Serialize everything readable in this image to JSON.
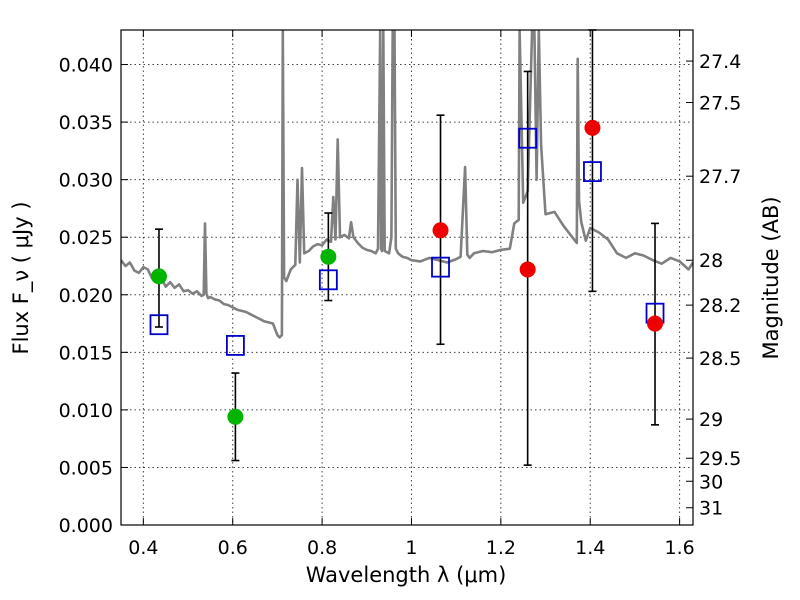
{
  "chart_data": {
    "type": "scatter",
    "xlabel": "Wavelength  λ (μm)",
    "ylabel": "Flux  F_ν  ( μJy )",
    "ylabel_right": "Magnitude (AB)",
    "xlim": [
      0.35,
      1.63
    ],
    "ylim": [
      0.0,
      0.043
    ],
    "grid": true,
    "x_ticks": [
      0.4,
      0.6,
      0.8,
      1.0,
      1.2,
      1.4,
      1.6
    ],
    "x_tick_labels": [
      "0.4",
      "0.6",
      "0.8",
      "1",
      "1.2",
      "1.4",
      "1.6"
    ],
    "y_ticks": [
      0.0,
      0.005,
      0.01,
      0.015,
      0.02,
      0.025,
      0.03,
      0.035,
      0.04
    ],
    "y_tick_labels": [
      "0.000",
      "0.005",
      "0.010",
      "0.015",
      "0.020",
      "0.025",
      "0.030",
      "0.035",
      "0.040"
    ],
    "right_axis_ticks": [
      {
        "label": "27.4",
        "flux": 0.0403
      },
      {
        "label": "27.5",
        "flux": 0.0367
      },
      {
        "label": "27.7",
        "flux": 0.0303
      },
      {
        "label": "28",
        "flux": 0.023
      },
      {
        "label": "28.2",
        "flux": 0.0191
      },
      {
        "label": "28.5",
        "flux": 0.0145
      },
      {
        "label": "29",
        "flux": 0.0092
      },
      {
        "label": "29.5",
        "flux": 0.0058
      },
      {
        "label": "30",
        "flux": 0.0038
      },
      {
        "label": "31",
        "flux": 0.0015
      }
    ],
    "series": [
      {
        "name": "model spectrum",
        "kind": "line",
        "color": "#808080",
        "x": [
          0.35,
          0.36,
          0.37,
          0.38,
          0.39,
          0.4,
          0.41,
          0.42,
          0.43,
          0.44,
          0.45,
          0.46,
          0.47,
          0.48,
          0.49,
          0.5,
          0.51,
          0.52,
          0.53,
          0.535,
          0.538,
          0.541,
          0.545,
          0.55,
          0.56,
          0.57,
          0.58,
          0.59,
          0.6,
          0.61,
          0.62,
          0.63,
          0.64,
          0.65,
          0.66,
          0.67,
          0.68,
          0.69,
          0.7,
          0.705,
          0.71,
          0.712,
          0.715,
          0.72,
          0.73,
          0.74,
          0.745,
          0.75,
          0.755,
          0.76,
          0.77,
          0.78,
          0.79,
          0.8,
          0.81,
          0.82,
          0.825,
          0.83,
          0.835,
          0.84,
          0.85,
          0.86,
          0.865,
          0.87,
          0.88,
          0.89,
          0.9,
          0.91,
          0.92,
          0.925,
          0.93,
          0.932,
          0.934,
          0.937,
          0.94,
          0.95,
          0.955,
          0.958,
          0.962,
          0.965,
          0.97,
          0.98,
          0.99,
          1.0,
          1.02,
          1.04,
          1.06,
          1.08,
          1.1,
          1.11,
          1.12,
          1.125,
          1.13,
          1.14,
          1.16,
          1.18,
          1.2,
          1.22,
          1.23,
          1.24,
          1.242,
          1.25,
          1.26,
          1.27,
          1.275,
          1.28,
          1.285,
          1.29,
          1.3,
          1.32,
          1.34,
          1.35,
          1.36,
          1.37,
          1.372,
          1.375,
          1.38,
          1.39,
          1.4,
          1.42,
          1.44,
          1.46,
          1.48,
          1.5,
          1.52,
          1.54,
          1.56,
          1.58,
          1.6,
          1.62,
          1.63
        ],
        "y": [
          0.023,
          0.0225,
          0.0228,
          0.0221,
          0.0219,
          0.0224,
          0.0222,
          0.0214,
          0.0218,
          0.0215,
          0.0207,
          0.0211,
          0.0206,
          0.0209,
          0.0203,
          0.0204,
          0.0201,
          0.0203,
          0.0199,
          0.02,
          0.0262,
          0.0201,
          0.0197,
          0.0198,
          0.0196,
          0.0195,
          0.0192,
          0.0191,
          0.0189,
          0.0187,
          0.0186,
          0.0185,
          0.0183,
          0.0181,
          0.0179,
          0.0177,
          0.0176,
          0.0175,
          0.0165,
          0.0163,
          0.0165,
          0.043,
          0.0215,
          0.0212,
          0.0222,
          0.0226,
          0.03,
          0.0228,
          0.031,
          0.0236,
          0.0238,
          0.0242,
          0.0244,
          0.0243,
          0.0248,
          0.0246,
          0.0285,
          0.0248,
          0.0335,
          0.025,
          0.0252,
          0.0249,
          0.0263,
          0.025,
          0.0245,
          0.0241,
          0.0239,
          0.0238,
          0.0236,
          0.024,
          0.043,
          0.024,
          0.0238,
          0.043,
          0.0238,
          0.0236,
          0.025,
          0.043,
          0.043,
          0.024,
          0.0236,
          0.0233,
          0.0232,
          0.023,
          0.0229,
          0.0232,
          0.023,
          0.0228,
          0.0231,
          0.0233,
          0.0311,
          0.0235,
          0.0232,
          0.0236,
          0.0238,
          0.0237,
          0.0239,
          0.024,
          0.0262,
          0.0265,
          0.043,
          0.028,
          0.029,
          0.043,
          0.043,
          0.03,
          0.043,
          0.033,
          0.027,
          0.0272,
          0.026,
          0.0255,
          0.025,
          0.0245,
          0.0405,
          0.0282,
          0.0263,
          0.0247,
          0.0258,
          0.0254,
          0.0248,
          0.0236,
          0.0232,
          0.0236,
          0.0234,
          0.023,
          0.0227,
          0.0232,
          0.0229,
          0.0222,
          0.0228
        ]
      },
      {
        "name": "green observed",
        "kind": "points",
        "color": "#00b400",
        "points": [
          {
            "x": 0.435,
            "y": 0.0216,
            "lo": 0.0172,
            "hi": 0.0257
          },
          {
            "x": 0.606,
            "y": 0.0094,
            "lo": 0.0056,
            "hi": 0.0132
          },
          {
            "x": 0.814,
            "y": 0.0233,
            "lo": 0.0195,
            "hi": 0.0271
          }
        ]
      },
      {
        "name": "red observed",
        "kind": "points",
        "color": "#ee0000",
        "points": [
          {
            "x": 1.065,
            "y": 0.0256,
            "lo": 0.0157,
            "hi": 0.0356
          },
          {
            "x": 1.26,
            "y": 0.0222,
            "lo": 0.0052,
            "hi": 0.0394
          },
          {
            "x": 1.405,
            "y": 0.0345,
            "lo": 0.0203,
            "hi": 0.043
          },
          {
            "x": 1.545,
            "y": 0.0175,
            "lo": 0.0087,
            "hi": 0.0262
          }
        ]
      },
      {
        "name": "model photometry",
        "kind": "squares",
        "color": "#0000cc",
        "points": [
          {
            "x": 0.435,
            "y": 0.0174
          },
          {
            "x": 0.606,
            "y": 0.0156
          },
          {
            "x": 0.814,
            "y": 0.0213
          },
          {
            "x": 1.065,
            "y": 0.0224
          },
          {
            "x": 1.26,
            "y": 0.0336
          },
          {
            "x": 1.405,
            "y": 0.0307
          },
          {
            "x": 1.545,
            "y": 0.0184
          }
        ]
      }
    ]
  }
}
